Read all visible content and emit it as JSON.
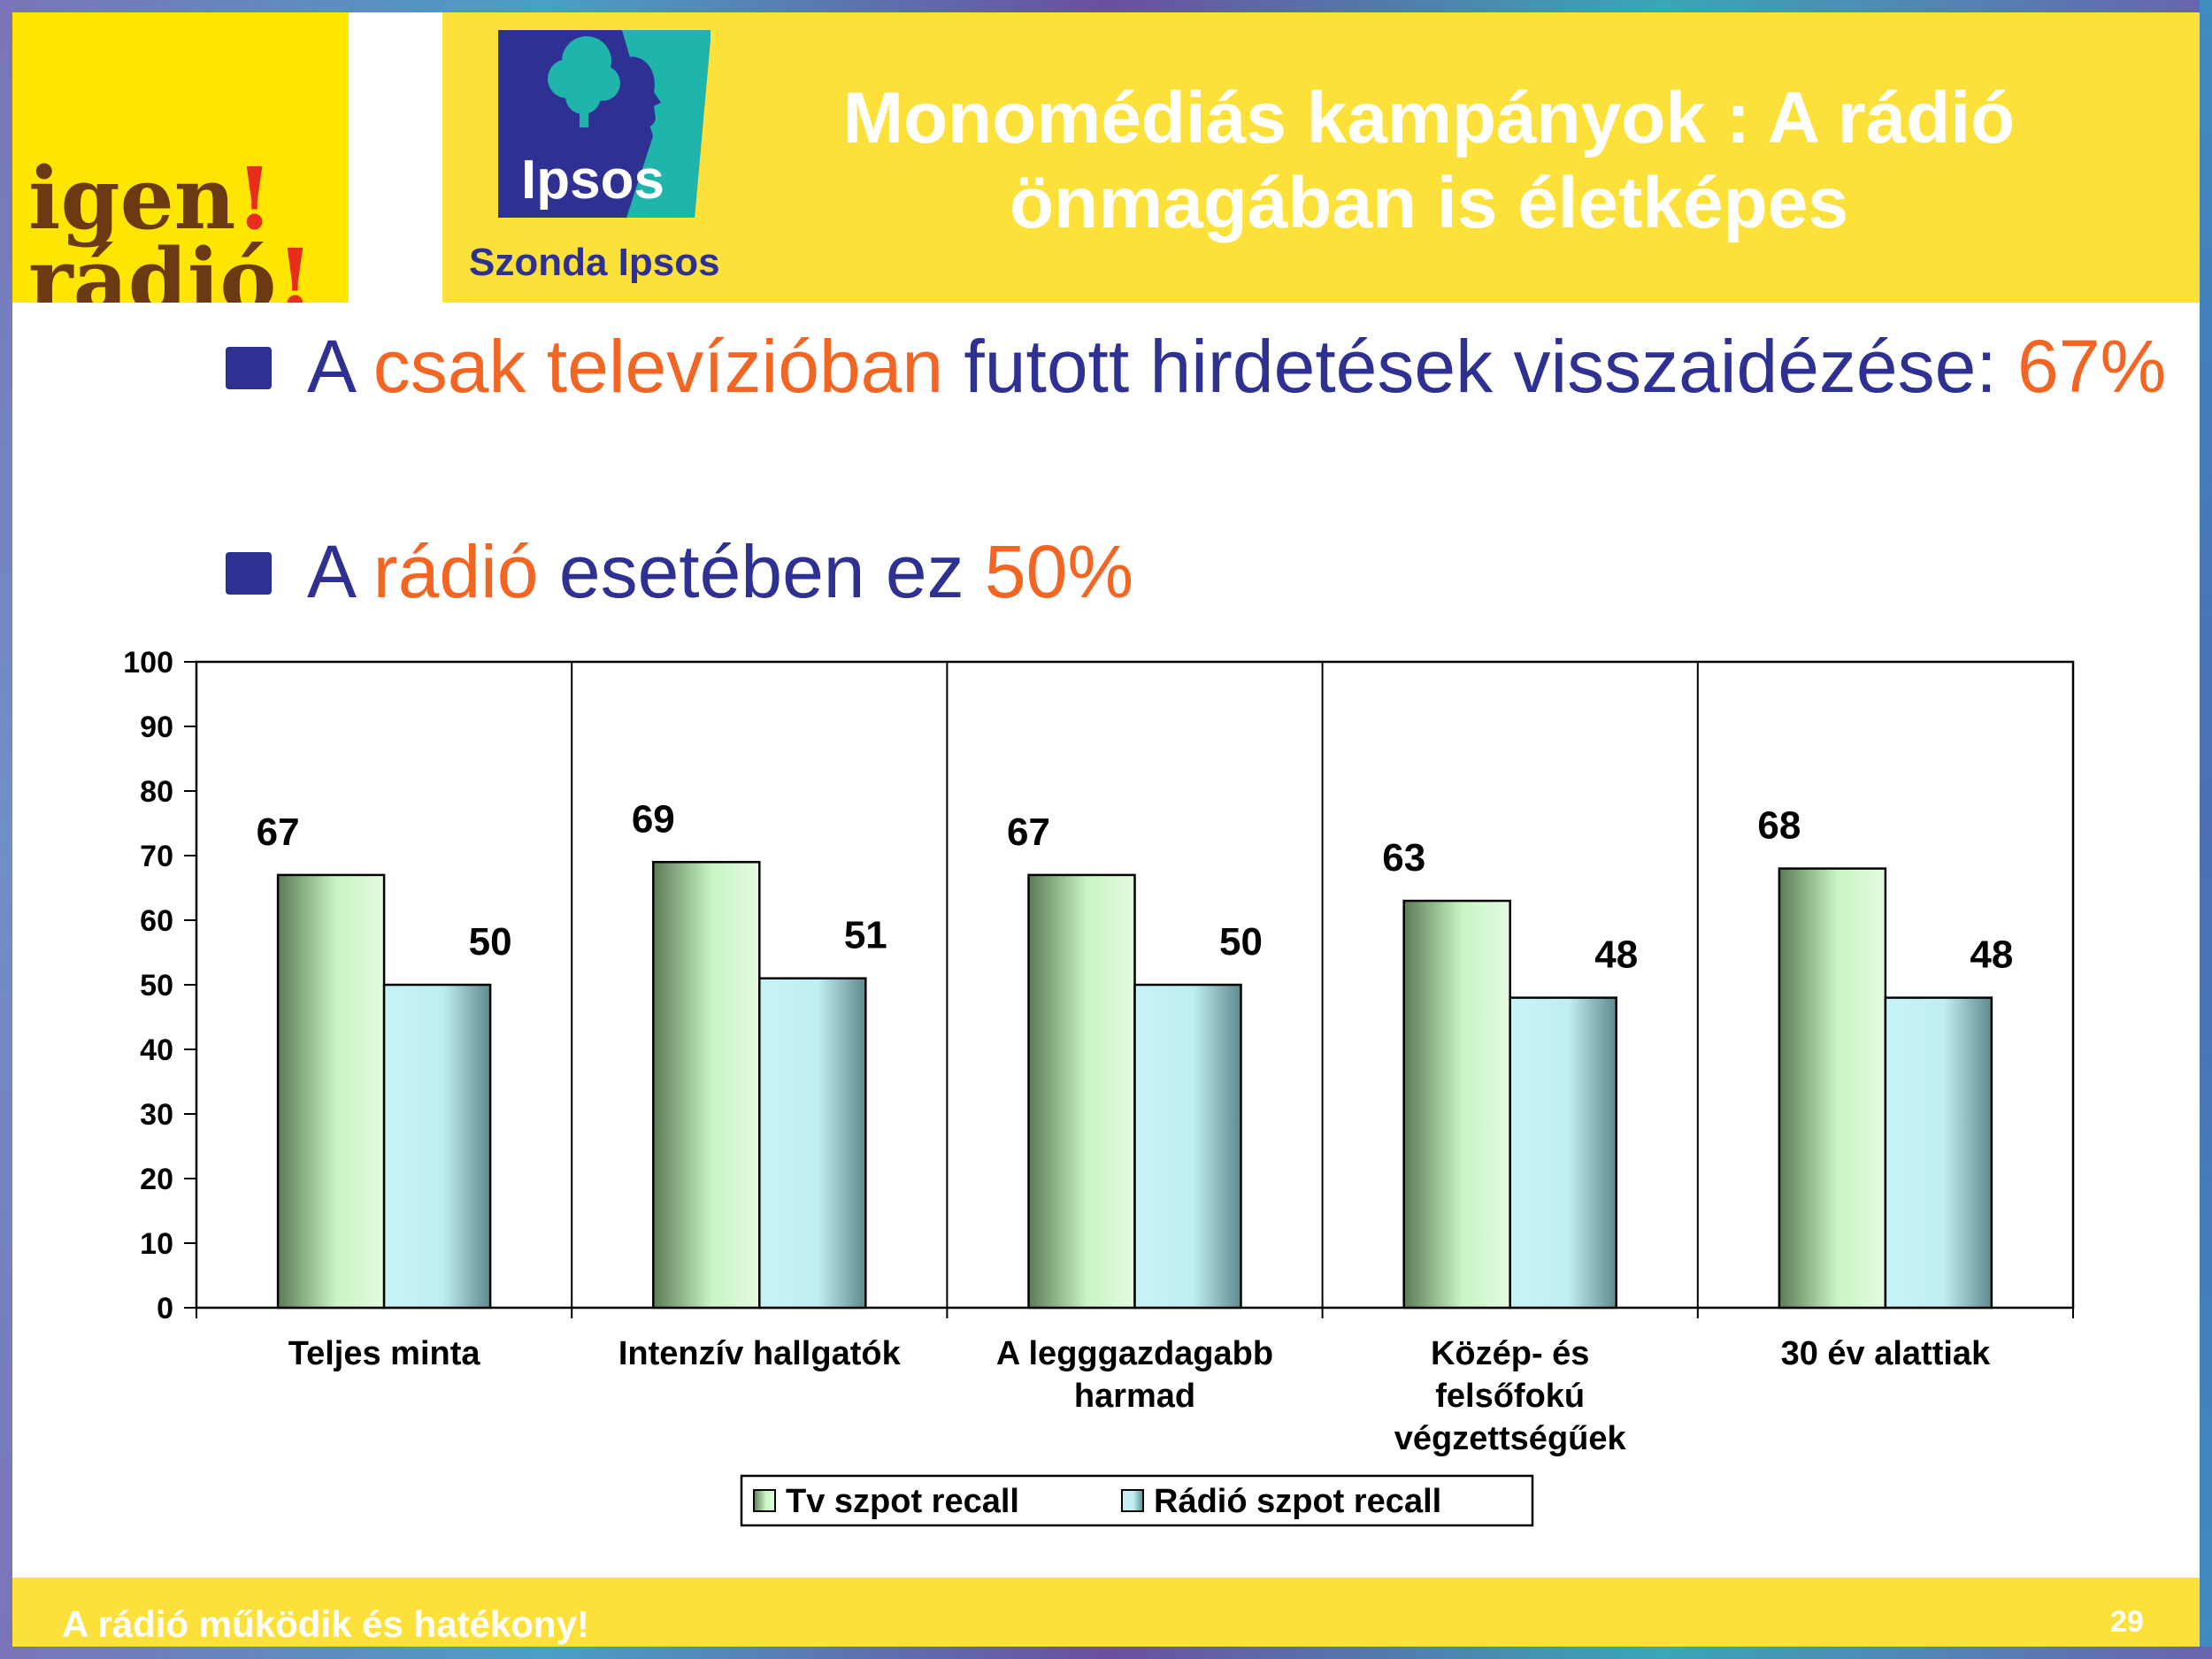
{
  "header": {
    "title": "Monomédiás kampányok : A rádió önmagában is életképes",
    "igen_logo": {
      "line1_word": "igen",
      "line1_bang": "!",
      "line2_word": "rádió",
      "line2_bang": "!"
    },
    "ipsos_logo_text": "Ipsos",
    "ipsos_sub": "Szonda Ipsos"
  },
  "bullets": [
    {
      "p1": "A ",
      "p2": "csak televízióban",
      "p3": " futott hirdetések visszaidézése: ",
      "p4": "67%"
    },
    {
      "p1": "A ",
      "p2": "rádió",
      "p3": " esetében ez ",
      "p4": "50%"
    }
  ],
  "colors": {
    "header_band": "#fde13b",
    "title_text": "#ffffff",
    "bullet_text": "#2e3192",
    "highlight": "#f26522",
    "tv_bar": "#c8f5c4",
    "radio_bar": "#c6f3f6"
  },
  "chart_data": {
    "type": "bar",
    "categories": [
      [
        "Teljes minta"
      ],
      [
        "Intenzív hallgatók"
      ],
      [
        "A legggazdagabb",
        "harmad"
      ],
      [
        "Közép- és",
        "felsőfokú",
        "végzettségűek"
      ],
      [
        "30 év alattiak"
      ]
    ],
    "series": [
      {
        "name": "Tv szpot recall",
        "values": [
          67,
          69,
          67,
          63,
          68
        ]
      },
      {
        "name": "Rádió szpot recall",
        "values": [
          50,
          51,
          50,
          48,
          48
        ]
      }
    ],
    "ylim": [
      0,
      100
    ],
    "yticks": [
      0,
      10,
      20,
      30,
      40,
      50,
      60,
      70,
      80,
      90,
      100
    ],
    "grid": false,
    "legend_position": "bottom"
  },
  "footer": {
    "text": "A rádió működik és hatékony!",
    "page_number": "29"
  }
}
